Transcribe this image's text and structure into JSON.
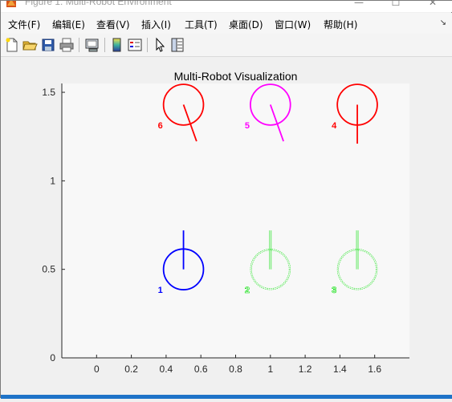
{
  "window": {
    "title": "Figure 1: Multi-Robot Environment",
    "controls": {
      "minimize": "—",
      "maximize": "☐",
      "close": "✕"
    }
  },
  "menu": {
    "items": [
      {
        "label": "文件(F)"
      },
      {
        "label": "编辑(E)"
      },
      {
        "label": "查看(V)"
      },
      {
        "label": "插入(I)"
      },
      {
        "label": "工具(T)"
      },
      {
        "label": "桌面(D)"
      },
      {
        "label": "窗口(W)"
      },
      {
        "label": "帮助(H)"
      }
    ],
    "dock_arrow": "↘"
  },
  "toolbar": {
    "buttons": [
      {
        "icon": "new-figure-icon"
      },
      {
        "icon": "open-file-icon"
      },
      {
        "icon": "save-icon"
      },
      {
        "icon": "print-icon"
      },
      {
        "icon": "link-plot-icon"
      },
      {
        "icon": "colorbar-icon"
      },
      {
        "icon": "legend-icon"
      },
      {
        "icon": "pointer-icon"
      },
      {
        "icon": "property-inspector-icon"
      }
    ]
  },
  "chart_data": {
    "type": "scatter",
    "title": "Multi-Robot Visualization",
    "xlabel": "",
    "ylabel": "",
    "xlim": [
      -0.2,
      1.8
    ],
    "ylim": [
      0,
      1.55
    ],
    "xticks": [
      "0",
      "0.2",
      "0.4",
      "0.6",
      "0.8",
      "1",
      "1.2",
      "1.4",
      "1.6"
    ],
    "yticks": [
      "0",
      "0.5",
      "1",
      "1.5"
    ],
    "xtick_values": [
      0,
      0.2,
      0.4,
      0.6,
      0.8,
      1.0,
      1.2,
      1.4,
      1.6
    ],
    "ytick_values": [
      0,
      0.5,
      1.0,
      1.5
    ],
    "grid": false,
    "background": "#f8f8f8",
    "robot_radius": 0.115,
    "robots": [
      {
        "id": "1",
        "x": 0.5,
        "y": 0.5,
        "heading_deg": 90,
        "color": "#0000ff",
        "style": "solid"
      },
      {
        "id": "2",
        "x": 1.0,
        "y": 0.5,
        "heading_deg": 90,
        "color": "#00e000",
        "style": "faint"
      },
      {
        "id": "3",
        "x": 1.5,
        "y": 0.5,
        "heading_deg": 90,
        "color": "#00e000",
        "style": "faint"
      },
      {
        "id": "4",
        "x": 1.5,
        "y": 1.43,
        "heading_deg": -90,
        "color": "#ff0000",
        "style": "solid"
      },
      {
        "id": "5",
        "x": 1.0,
        "y": 1.43,
        "heading_deg": -70,
        "color": "#ff00ff",
        "style": "solid"
      },
      {
        "id": "6",
        "x": 0.5,
        "y": 1.43,
        "heading_deg": -70,
        "color": "#ff0000",
        "style": "solid"
      }
    ]
  }
}
